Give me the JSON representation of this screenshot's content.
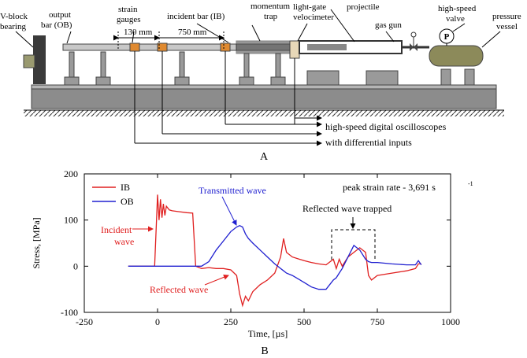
{
  "diagram": {
    "labels": {
      "v_block": [
        "V-block",
        "bearing"
      ],
      "output_bar": [
        "output",
        "bar (OB)"
      ],
      "strain_gauges": [
        "strain",
        "gauges"
      ],
      "incident_bar": "incident bar (IB)",
      "momentum_trap": [
        "momentum",
        "trap"
      ],
      "velocimeter": [
        "light-gate",
        "velocimeter"
      ],
      "projectile": "projectile",
      "gas_gun": "gas gun",
      "valve": [
        "high-speed",
        "valve"
      ],
      "pressure_vessel": [
        "pressure",
        "vessel"
      ],
      "dim_130": "130 mm",
      "dim_750": "750 mm",
      "oscilloscopes": [
        "high-speed digital oscilloscopes",
        "with differential inputs"
      ],
      "gauge_symbol": "P"
    },
    "panel": "A"
  },
  "chart_data": {
    "type": "line",
    "panel": "B",
    "x_label": "Time, [µs]",
    "y_label": "Stress, [MPa]",
    "xlim": [
      -250,
      1000
    ],
    "xticks": [
      -250,
      0,
      250,
      500,
      750,
      1000
    ],
    "ylim": [
      -100,
      200
    ],
    "yticks": [
      -100,
      0,
      100,
      200
    ],
    "legend": "top-left",
    "x": [
      -100,
      -10,
      0,
      5,
      10,
      15,
      20,
      25,
      30,
      40,
      50,
      75,
      100,
      120,
      130,
      150,
      175,
      200,
      225,
      250,
      270,
      280,
      290,
      300,
      310,
      325,
      350,
      375,
      400,
      420,
      430,
      440,
      460,
      500,
      525,
      550,
      575,
      600,
      610,
      620,
      630,
      650,
      670,
      690,
      710,
      720,
      730,
      750,
      800,
      850,
      880,
      890,
      900
    ],
    "series": [
      {
        "name": "IB",
        "color": "#e02020",
        "values": [
          0,
          0,
          155,
          100,
          145,
          105,
          135,
          110,
          130,
          122,
          120,
          118,
          116,
          115,
          0,
          -5,
          -3,
          -5,
          -5,
          -8,
          -20,
          -60,
          -85,
          -65,
          -75,
          -55,
          -40,
          -30,
          -15,
          20,
          60,
          30,
          20,
          12,
          8,
          5,
          3,
          15,
          -5,
          15,
          0,
          20,
          30,
          40,
          30,
          -20,
          -30,
          -20,
          -15,
          -10,
          -5,
          5,
          5
        ]
      },
      {
        "name": "OB",
        "color": "#2020d0",
        "values": [
          0,
          0,
          0,
          0,
          0,
          0,
          0,
          0,
          0,
          0,
          0,
          0,
          0,
          0,
          0,
          0,
          10,
          35,
          55,
          75,
          85,
          88,
          85,
          70,
          60,
          50,
          35,
          20,
          5,
          -5,
          -10,
          -15,
          -20,
          -35,
          -45,
          -50,
          -50,
          -30,
          -25,
          -15,
          -5,
          20,
          45,
          35,
          15,
          10,
          8,
          8,
          5,
          3,
          3,
          12,
          3
        ]
      }
    ],
    "annotations": {
      "transmitted": "Transmitted wave",
      "incident": [
        "Incident",
        "wave"
      ],
      "reflected": "Reflected wave",
      "trapped": "Reflected wave trapped",
      "strain_rate": "peak strain rate - 3,691 s",
      "strain_rate_exp": "-1"
    }
  }
}
